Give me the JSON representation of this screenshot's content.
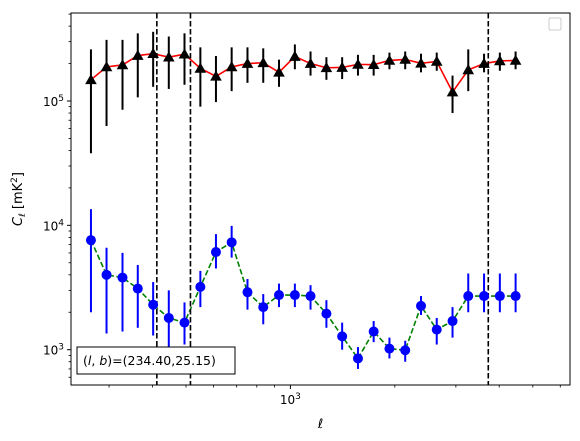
{
  "chart_data": {
    "type": "scatter",
    "title": "",
    "xlabel": "ℓ",
    "ylabel_main": "C",
    "ylabel_sub": "ℓ",
    "ylabel_unit": "[mK",
    "ylabel_unit_sup": "2",
    "ylabel_unit_close": "]",
    "x_scale": "log",
    "y_scale": "log",
    "xlim": [
      233,
      6400
    ],
    "ylim": [
      520,
      510000
    ],
    "x_ticks": [
      {
        "value": 1000,
        "base": "10",
        "exp": "3"
      }
    ],
    "y_ticks": [
      {
        "value": 1000,
        "base": "10",
        "exp": "3"
      },
      {
        "value": 10000,
        "base": "10",
        "exp": "4"
      },
      {
        "value": 100000,
        "base": "10",
        "exp": "5"
      }
    ],
    "grid": false,
    "legend": "top-right (empty)",
    "annotation": "(l, b)=(234.40,25.15)",
    "annotation_parts": {
      "l": "l",
      "sep": ", ",
      "b": "b",
      "values": ")=(234.40,25.15)"
    },
    "vlines_x": [
      412,
      515,
      3720
    ],
    "series": [
      {
        "marker": "triangle",
        "color": "#000000",
        "line_color": "#ff0000",
        "line_style": "solid",
        "x": [
          266,
          295,
          328,
          363,
          402,
          446,
          495,
          550,
          610,
          677,
          752,
          835,
          927,
          1030,
          1143,
          1270,
          1410,
          1566,
          1738,
          1930,
          2143,
          2380,
          2642,
          2934,
          3257,
          3617,
          4017,
          4460
        ],
        "y": [
          148000,
          188000,
          195000,
          232000,
          240000,
          225000,
          238000,
          183000,
          158000,
          188000,
          200000,
          203000,
          170000,
          228000,
          200000,
          185000,
          186000,
          197000,
          196000,
          212000,
          216000,
          201000,
          208000,
          118000,
          178000,
          200000,
          210000,
          212000
        ],
        "err_low": [
          38000,
          63000,
          85000,
          107000,
          130000,
          125000,
          135000,
          90000,
          98000,
          120000,
          140000,
          140000,
          130000,
          180000,
          160000,
          148000,
          150000,
          160000,
          160000,
          180000,
          180000,
          170000,
          175000,
          80000,
          120000,
          170000,
          175000,
          180000
        ],
        "err_high": [
          260000,
          310000,
          310000,
          350000,
          360000,
          330000,
          350000,
          270000,
          230000,
          270000,
          270000,
          265000,
          215000,
          285000,
          250000,
          225000,
          225000,
          235000,
          235000,
          245000,
          250000,
          240000,
          245000,
          160000,
          260000,
          240000,
          245000,
          250000
        ]
      },
      {
        "marker": "circle",
        "color": "#0000ff",
        "line_color": "#008000",
        "line_style": "dashed",
        "x": [
          266,
          295,
          328,
          363,
          402,
          446,
          495,
          550,
          610,
          677,
          752,
          835,
          927,
          1030,
          1143,
          1270,
          1410,
          1566,
          1738,
          1930,
          2143,
          2380,
          2642,
          2934,
          3257,
          3617,
          4017,
          4460
        ],
        "y": [
          7600,
          4000,
          3800,
          3100,
          2300,
          1800,
          1650,
          3200,
          6100,
          7300,
          2900,
          2200,
          2750,
          2750,
          2700,
          1950,
          1280,
          850,
          1400,
          1020,
          990,
          2250,
          1450,
          1700,
          2700,
          2700,
          2700,
          2700
        ],
        "err_low": [
          2000,
          1350,
          1400,
          1500,
          1300,
          1000,
          1100,
          2200,
          4500,
          5500,
          2100,
          1600,
          2200,
          2200,
          2100,
          1500,
          1000,
          700,
          1150,
          850,
          800,
          1900,
          1100,
          1250,
          2000,
          2000,
          2000,
          2000
        ],
        "err_high": [
          13500,
          6600,
          6000,
          4800,
          3500,
          3000,
          2400,
          4300,
          8500,
          9900,
          3700,
          2800,
          3400,
          3400,
          3300,
          2500,
          1650,
          1050,
          1700,
          1250,
          1180,
          2700,
          1800,
          2200,
          4100,
          4100,
          4100,
          4100
        ]
      }
    ]
  }
}
